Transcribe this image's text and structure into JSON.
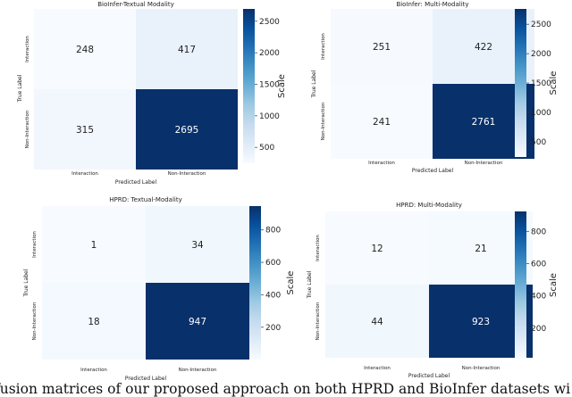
{
  "chart_data": [
    {
      "type": "heatmap",
      "title": "BioInfer-Textual Modality",
      "xlabel": "Predicted Label",
      "ylabel": "True Label",
      "colorbar_label": "Scale",
      "x_categories": [
        "Interaction",
        "Non-Interaction"
      ],
      "y_categories": [
        "Interaction",
        "Non-Interaction"
      ],
      "values": [
        [
          248,
          417
        ],
        [
          315,
          2695
        ]
      ],
      "colorbar_ticks": [
        500,
        1000,
        1500,
        2000,
        2500
      ],
      "color_range": [
        248,
        2695
      ],
      "colormap": "Blues"
    },
    {
      "type": "heatmap",
      "title": "BioInfer: Multi-Modality",
      "xlabel": "Predicted Label",
      "ylabel": "True Label",
      "colorbar_label": "Scale",
      "x_categories": [
        "Interaction",
        "Non-Interaction"
      ],
      "y_categories": [
        "Interaction",
        "Non-Interaction"
      ],
      "values": [
        [
          251,
          422
        ],
        [
          241,
          2761
        ]
      ],
      "colorbar_ticks": [
        500,
        1000,
        1500,
        2000,
        2500
      ],
      "color_range": [
        241,
        2761
      ],
      "colormap": "Blues"
    },
    {
      "type": "heatmap",
      "title": "HPRD: Textual-Modality",
      "xlabel": "Predicted Label",
      "ylabel": "True Label",
      "colorbar_label": "Scale",
      "x_categories": [
        "Interaction",
        "Non-Interaction"
      ],
      "y_categories": [
        "Interaction",
        "Non-Interaction"
      ],
      "values": [
        [
          1,
          34
        ],
        [
          18,
          947
        ]
      ],
      "colorbar_ticks": [
        200,
        400,
        600,
        800
      ],
      "color_range": [
        1,
        947
      ],
      "colormap": "Blues"
    },
    {
      "type": "heatmap",
      "title": "HPRD: Multi-Modality",
      "xlabel": "Predicted Label",
      "ylabel": "True Label",
      "colorbar_label": "Scale",
      "x_categories": [
        "Interaction",
        "Non-Interaction"
      ],
      "y_categories": [
        "Interaction",
        "Non-Interaction"
      ],
      "values": [
        [
          12,
          21
        ],
        [
          44,
          923
        ]
      ],
      "colorbar_ticks": [
        200,
        400,
        600,
        800
      ],
      "color_range": [
        12,
        923
      ],
      "colormap": "Blues"
    }
  ],
  "caption": "fusion matrices of our proposed approach on both HPRD and BioInfer datasets wi"
}
